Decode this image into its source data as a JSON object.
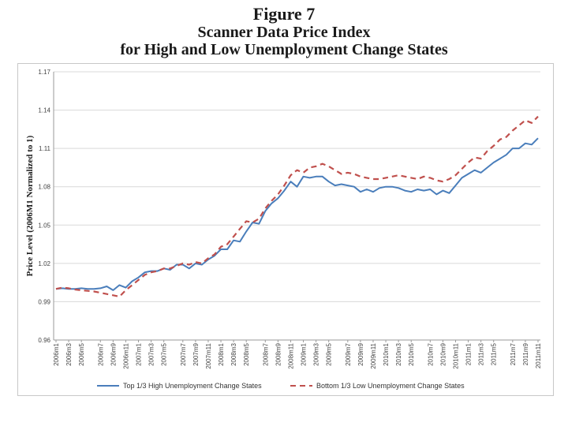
{
  "figure": {
    "label": "Figure 7",
    "title_line1": "Scanner Data Price Index",
    "title_line2": "for High and Low Unemployment Change States"
  },
  "chart_data": {
    "type": "line",
    "ylabel": "Price Level (2006M1 Normalized to 1)",
    "ylim": [
      0.96,
      1.17
    ],
    "yticks": [
      0.96,
      0.99,
      1.02,
      1.05,
      1.08,
      1.11,
      1.14,
      1.17
    ],
    "ytick_labels": [
      "0.96",
      "0.99",
      "1.02",
      "1.05",
      "1.08",
      "1.11",
      "1.14",
      "1.17"
    ],
    "xlabels": [
      "2006m1",
      "2006m3",
      "2006m5",
      "2006m7",
      "2006m9",
      "2006m11",
      "2007m1",
      "2007m3",
      "2007m5",
      "2007m7",
      "2007m9",
      "2007m11",
      "2008m1",
      "2008m3",
      "2008m5",
      "2008m7",
      "2008m9",
      "2008m11",
      "2009m1",
      "2009m3",
      "2009m5",
      "2009m7",
      "2009m9",
      "2009m11",
      "2010m1",
      "2010m3",
      "2010m5",
      "2010m7",
      "2010m9",
      "2010m11",
      "2011m1",
      "2011m3",
      "2011m5",
      "2011m7",
      "2011m9",
      "2011m11"
    ],
    "legend_position": "bottom",
    "series": [
      {
        "name": "Top 1/3 High Unemployment Change States",
        "color": "#4a7ebb",
        "dash": "solid",
        "values": [
          1.0,
          1.0005,
          1.0,
          1.0,
          1.0005,
          1.0,
          1.0,
          1.0005,
          1.002,
          0.999,
          1.003,
          1.001,
          1.006,
          1.009,
          1.013,
          1.014,
          1.014,
          1.016,
          1.015,
          1.019,
          1.019,
          1.016,
          1.02,
          1.019,
          1.023,
          1.026,
          1.031,
          1.031,
          1.038,
          1.037,
          1.045,
          1.052,
          1.051,
          1.061,
          1.067,
          1.071,
          1.077,
          1.084,
          1.08,
          1.088,
          1.087,
          1.088,
          1.088,
          1.084,
          1.081,
          1.082,
          1.081,
          1.08,
          1.076,
          1.078,
          1.076,
          1.079,
          1.08,
          1.08,
          1.079,
          1.077,
          1.076,
          1.078,
          1.077,
          1.078,
          1.074,
          1.077,
          1.075,
          1.081,
          1.087,
          1.09,
          1.093,
          1.091,
          1.095,
          1.099,
          1.102,
          1.105,
          1.11,
          1.11,
          1.114,
          1.113,
          1.118
        ]
      },
      {
        "name": "Bottom 1/3 Low Unemployment Change States",
        "color": "#c0504d",
        "dash": "dashed",
        "values": [
          1.0,
          1.001,
          1.0005,
          0.9995,
          0.999,
          0.9985,
          0.998,
          0.997,
          0.996,
          0.995,
          0.994,
          0.999,
          1.003,
          1.007,
          1.011,
          1.013,
          1.014,
          1.016,
          1.016,
          1.018,
          1.02,
          1.019,
          1.021,
          1.02,
          1.024,
          1.027,
          1.033,
          1.035,
          1.041,
          1.047,
          1.053,
          1.052,
          1.055,
          1.063,
          1.069,
          1.074,
          1.081,
          1.089,
          1.093,
          1.091,
          1.095,
          1.096,
          1.098,
          1.096,
          1.093,
          1.09,
          1.091,
          1.09,
          1.088,
          1.087,
          1.086,
          1.086,
          1.087,
          1.088,
          1.089,
          1.088,
          1.087,
          1.086,
          1.088,
          1.087,
          1.085,
          1.084,
          1.086,
          1.089,
          1.094,
          1.099,
          1.103,
          1.102,
          1.108,
          1.112,
          1.117,
          1.119,
          1.124,
          1.128,
          1.132,
          1.13,
          1.135
        ]
      }
    ]
  }
}
